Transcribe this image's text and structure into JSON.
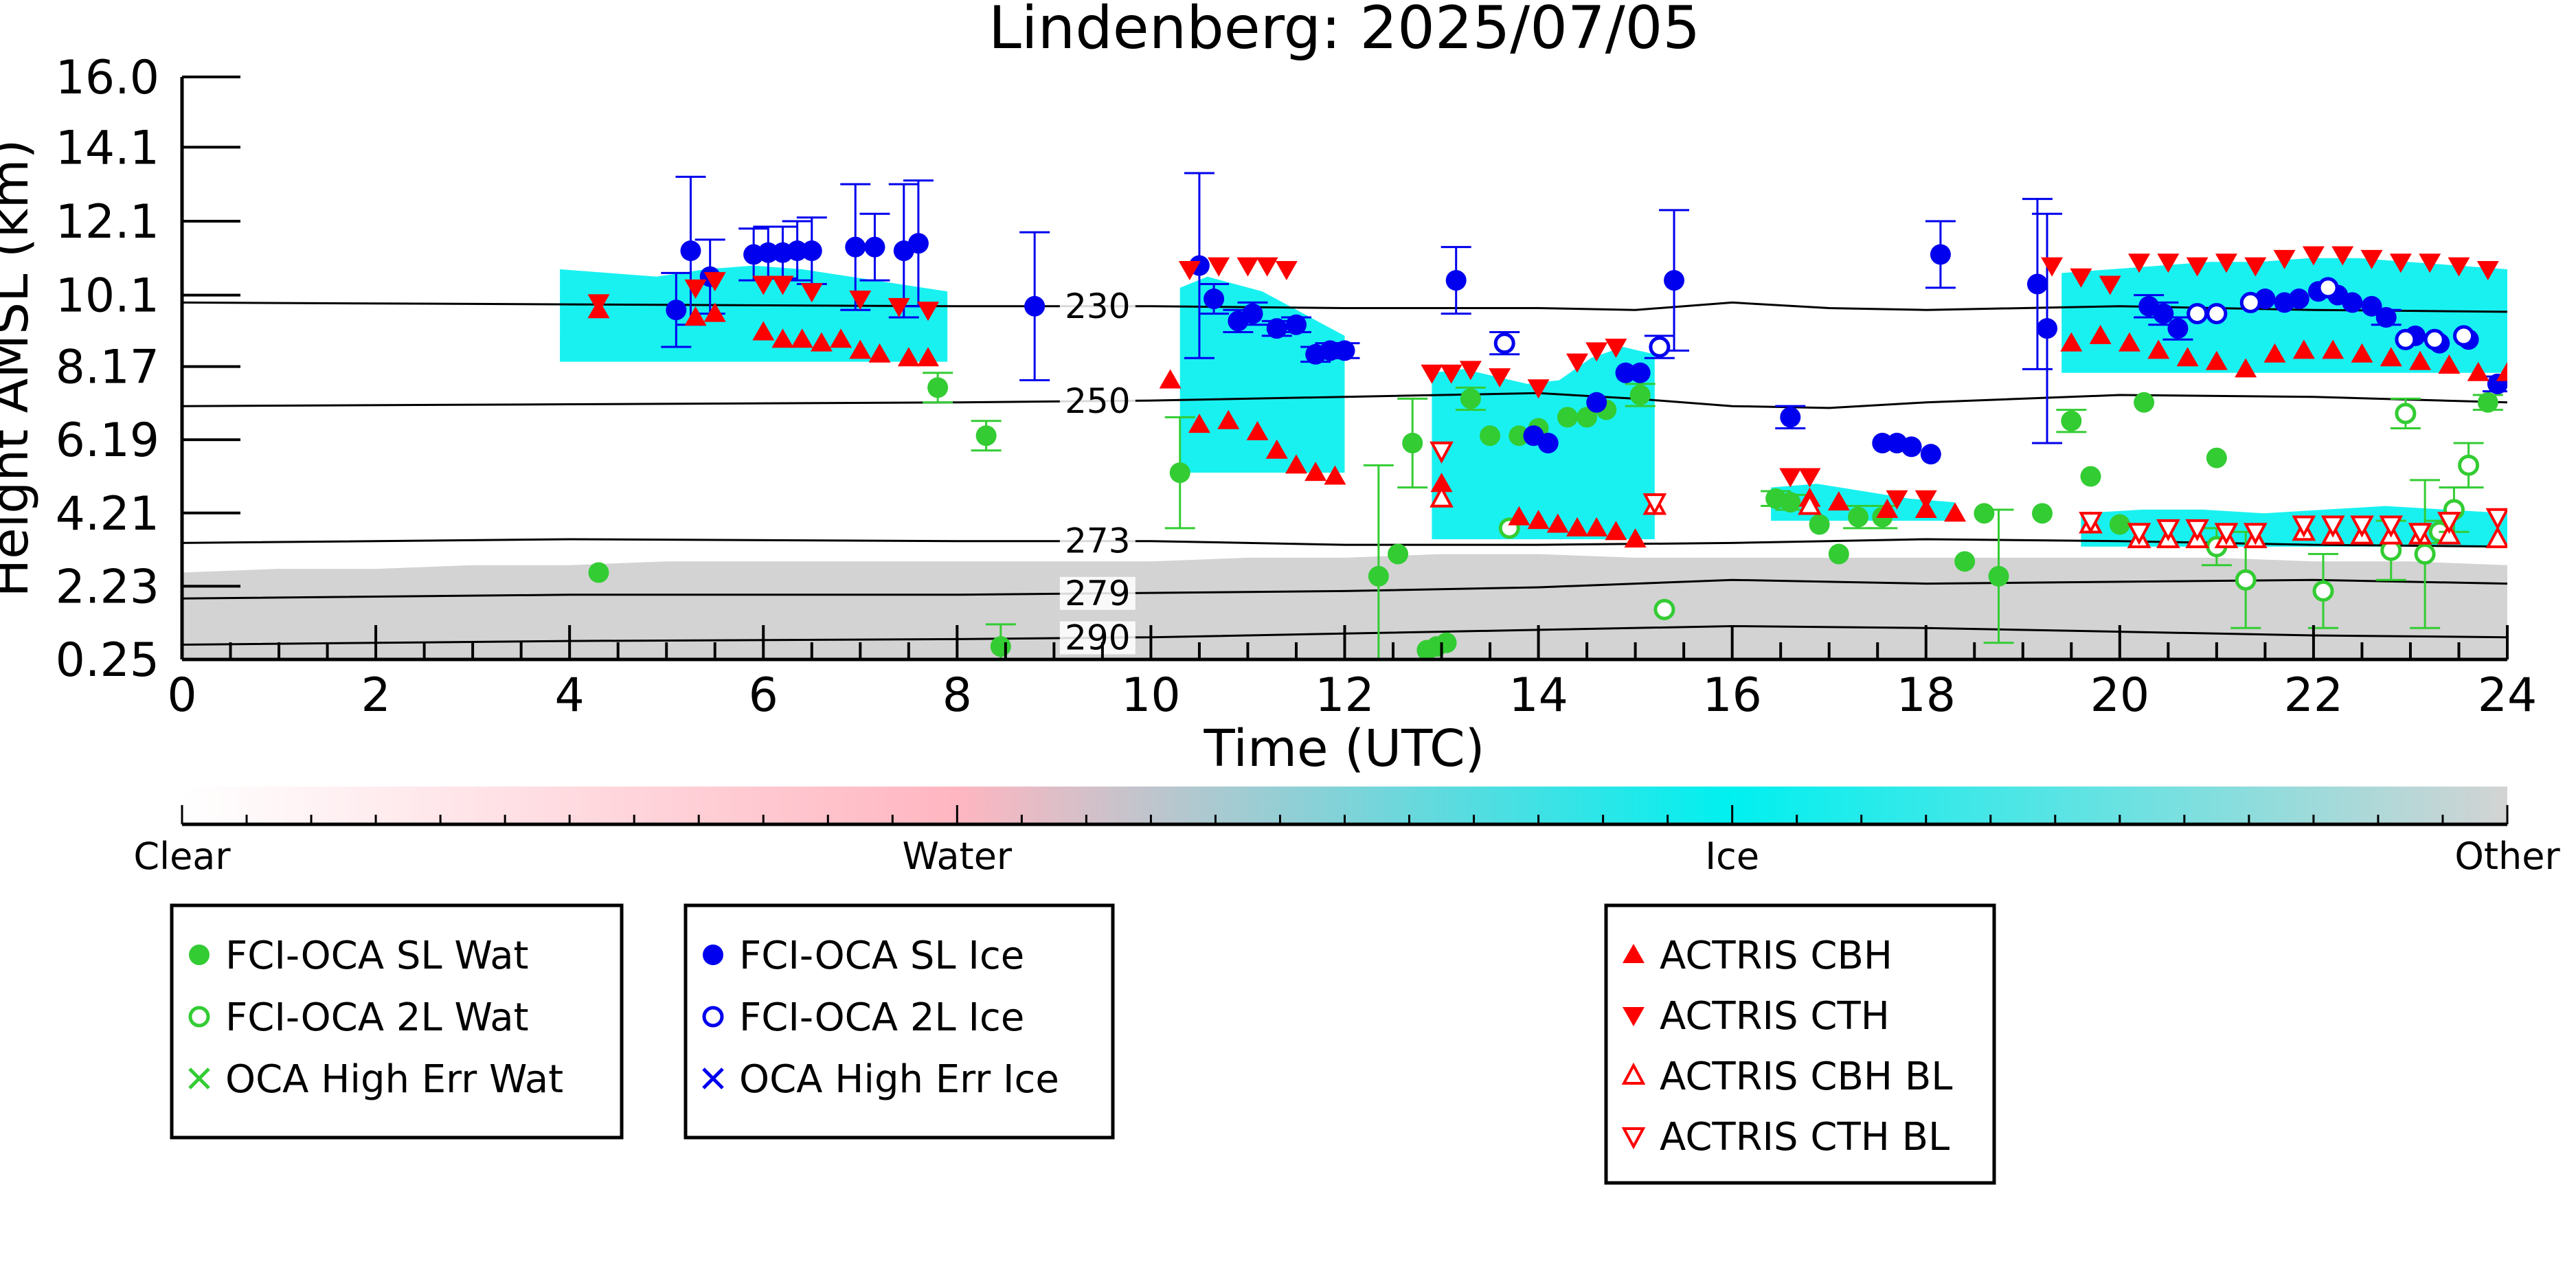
{
  "chart_data": {
    "type": "scatter",
    "title": "Lindenberg: 2025/07/05",
    "xlabel": "Time (UTC)",
    "ylabel": "Height AMSL (km)",
    "xlim": [
      0,
      24
    ],
    "ylim": [
      0.25,
      16.0
    ],
    "xticks": [
      "0",
      "2",
      "4",
      "6",
      "8",
      "10",
      "12",
      "14",
      "16",
      "18",
      "20",
      "22",
      "24"
    ],
    "yticks": [
      "0.25",
      "2.23",
      "4.21",
      "6.19",
      "8.17",
      "10.1",
      "12.1",
      "14.1",
      "16.0"
    ],
    "ytick_values": [
      0.25,
      2.23,
      4.21,
      6.19,
      8.17,
      10.1,
      12.1,
      14.1,
      16.0
    ],
    "grid": false,
    "colorbar": {
      "labels": [
        "Clear",
        "Water",
        "Ice",
        "Other"
      ],
      "colors": [
        "#ffffff",
        "#ffb6c1",
        "#00f0f0",
        "#d3d3d3"
      ]
    },
    "isotherms": [
      {
        "label": "230",
        "x": [
          0,
          4,
          8,
          10,
          12,
          14,
          15,
          16,
          17,
          18,
          20,
          22,
          24
        ],
        "y": [
          9.9,
          9.85,
          9.8,
          9.8,
          9.75,
          9.75,
          9.7,
          9.9,
          9.75,
          9.7,
          9.8,
          9.7,
          9.65
        ]
      },
      {
        "label": "250",
        "x": [
          0,
          4,
          8,
          10,
          12,
          14,
          15,
          16,
          17,
          18,
          20,
          22,
          24
        ],
        "y": [
          7.1,
          7.15,
          7.2,
          7.25,
          7.35,
          7.45,
          7.3,
          7.1,
          7.05,
          7.2,
          7.4,
          7.35,
          7.2
        ]
      },
      {
        "label": "273",
        "x": [
          0,
          4,
          8,
          10,
          12,
          14,
          16,
          18,
          20,
          22,
          24
        ],
        "y": [
          3.4,
          3.5,
          3.45,
          3.45,
          3.35,
          3.35,
          3.4,
          3.5,
          3.45,
          3.35,
          3.3
        ]
      },
      {
        "label": "279",
        "x": [
          0,
          4,
          8,
          10,
          12,
          14,
          16,
          18,
          20,
          22,
          24
        ],
        "y": [
          1.9,
          2.0,
          2.0,
          2.05,
          2.1,
          2.2,
          2.4,
          2.3,
          2.35,
          2.4,
          2.3
        ]
      },
      {
        "label": "290",
        "x": [
          0,
          4,
          8,
          10,
          12,
          14,
          16,
          18,
          20,
          22,
          24
        ],
        "y": [
          0.65,
          0.75,
          0.8,
          0.85,
          0.95,
          1.05,
          1.15,
          1.1,
          1.0,
          0.9,
          0.85
        ]
      }
    ],
    "series": [
      {
        "name": "FCI-OCA SL Wat",
        "color": "#33cc33",
        "marker": "filled-circle",
        "x": [
          4.3,
          7.8,
          8.3,
          8.45,
          10.3,
          12.35,
          12.55,
          12.7,
          12.85,
          12.95,
          13.05,
          13.3,
          13.5,
          13.8,
          14.0,
          14.3,
          14.5,
          14.7,
          15.05,
          16.45,
          16.6,
          16.9,
          17.1,
          17.3,
          17.55,
          18.4,
          18.6,
          18.75,
          19.2,
          19.5,
          19.7,
          20.0,
          20.25,
          21.0,
          23.8
        ],
        "y": [
          2.6,
          7.6,
          6.3,
          0.6,
          5.3,
          2.5,
          3.1,
          6.1,
          0.5,
          0.6,
          0.7,
          7.3,
          6.3,
          6.3,
          6.5,
          6.8,
          6.8,
          7.0,
          7.4,
          4.6,
          4.5,
          3.9,
          3.1,
          4.1,
          4.1,
          2.9,
          4.2,
          2.5,
          4.2,
          6.7,
          5.2,
          3.9,
          7.2,
          5.7,
          7.2
        ],
        "yerr": [
          0.1,
          0.4,
          0.4,
          0.6,
          1.5,
          3.0,
          0.1,
          1.2,
          0.1,
          0.1,
          0.1,
          0.3,
          0.1,
          0.1,
          0.1,
          0.1,
          0.1,
          0.1,
          0.3,
          0.2,
          0.2,
          0.1,
          0.1,
          0.3,
          0.3,
          0.1,
          0.1,
          1.8,
          0.1,
          0.3,
          0.1,
          0.1,
          0.1,
          0.1,
          0.2
        ]
      },
      {
        "name": "FCI-OCA 2L Wat",
        "color": "#33cc33",
        "marker": "open-circle",
        "x": [
          13.7,
          15.3,
          21.0,
          21.3,
          22.1,
          22.8,
          22.95,
          23.15,
          23.3,
          23.45,
          23.6
        ],
        "y": [
          3.8,
          1.6,
          3.3,
          2.4,
          2.1,
          3.2,
          6.9,
          3.1,
          3.7,
          4.3,
          5.5
        ],
        "yerr": [
          0.1,
          0.1,
          0.5,
          1.3,
          1.0,
          0.8,
          0.4,
          2.0,
          0.3,
          0.6,
          0.6
        ]
      },
      {
        "name": "OCA High Err Wat",
        "color": "#33cc33",
        "marker": "x",
        "x": [],
        "y": []
      },
      {
        "name": "FCI-OCA SL Ice",
        "color": "#0000ee",
        "marker": "filled-circle",
        "x": [
          5.1,
          5.25,
          5.45,
          5.9,
          6.05,
          6.2,
          6.35,
          6.5,
          6.95,
          7.15,
          7.45,
          7.6,
          8.8,
          10.5,
          10.65,
          10.9,
          11.05,
          11.3,
          11.5,
          11.7,
          11.85,
          12.0,
          13.15,
          13.95,
          14.1,
          14.6,
          14.9,
          15.05,
          15.4,
          16.6,
          17.55,
          17.7,
          17.85,
          18.05,
          18.15,
          19.15,
          19.25,
          20.3,
          20.45,
          20.6,
          21.5,
          21.7,
          21.85,
          22.05,
          22.25,
          22.4,
          22.6,
          22.75,
          23.05,
          23.3,
          23.6,
          23.9
        ],
        "y": [
          9.7,
          11.3,
          10.6,
          11.2,
          11.25,
          11.25,
          11.3,
          11.3,
          11.4,
          11.4,
          11.3,
          11.5,
          9.8,
          10.9,
          10.0,
          9.4,
          9.6,
          9.2,
          9.3,
          8.5,
          8.6,
          8.6,
          10.5,
          6.3,
          6.1,
          7.2,
          8.0,
          8.0,
          10.5,
          6.8,
          6.1,
          6.1,
          6.0,
          5.8,
          11.2,
          10.4,
          9.2,
          9.8,
          9.6,
          9.2,
          10.0,
          9.9,
          10.0,
          10.2,
          10.1,
          9.9,
          9.8,
          9.5,
          9.0,
          8.8,
          8.9,
          7.7
        ],
        "yerr": [
          1.0,
          2.0,
          1.0,
          0.7,
          0.7,
          0.7,
          0.8,
          0.9,
          1.7,
          0.9,
          1.8,
          1.7,
          2.0,
          2.5,
          0.4,
          0.3,
          0.3,
          0.2,
          0.2,
          0.2,
          0.2,
          0.2,
          0.9,
          0.1,
          0.1,
          0.1,
          0.1,
          0.1,
          1.9,
          0.3,
          0.1,
          0.1,
          0.1,
          0.1,
          0.9,
          2.3,
          3.1,
          0.3,
          0.3,
          0.3,
          0.1,
          0.1,
          0.1,
          0.1,
          0.1,
          0.1,
          0.1,
          0.2,
          0.1,
          0.1,
          0.1,
          0.2
        ]
      },
      {
        "name": "FCI-OCA 2L Ice",
        "color": "#0000ee",
        "marker": "open-circle",
        "x": [
          13.65,
          15.25,
          20.8,
          21.0,
          21.35,
          22.15,
          22.95,
          23.25,
          23.55
        ],
        "y": [
          8.8,
          8.7,
          9.6,
          9.6,
          9.9,
          10.3,
          8.9,
          8.9,
          9.0
        ],
        "yerr": [
          0.3,
          0.3,
          0.1,
          0.1,
          0.1,
          0.1,
          0.1,
          0.1,
          0.1
        ]
      },
      {
        "name": "OCA High Err Ice",
        "color": "#0000ee",
        "marker": "x",
        "x": [],
        "y": []
      },
      {
        "name": "ACTRIS CBH",
        "color": "#ff0000",
        "marker": "filled-triangle-up",
        "x": [
          4.3,
          5.3,
          5.5,
          6.0,
          6.2,
          6.4,
          6.6,
          6.8,
          7.0,
          7.2,
          7.5,
          7.7,
          10.2,
          10.5,
          10.8,
          11.1,
          11.3,
          11.5,
          11.7,
          11.9,
          13.0,
          13.8,
          14.0,
          14.2,
          14.4,
          14.6,
          14.8,
          15.0,
          16.8,
          17.1,
          17.6,
          18.0,
          18.3,
          19.5,
          19.8,
          20.1,
          20.4,
          20.7,
          21.0,
          21.3,
          21.6,
          21.9,
          22.2,
          22.5,
          22.8,
          23.1,
          23.4,
          23.7,
          24.0
        ],
        "y": [
          9.7,
          9.5,
          9.6,
          9.1,
          8.9,
          8.9,
          8.8,
          8.9,
          8.6,
          8.5,
          8.4,
          8.4,
          7.8,
          6.6,
          6.7,
          6.4,
          5.9,
          5.5,
          5.3,
          5.2,
          5.0,
          4.1,
          4.0,
          3.9,
          3.8,
          3.8,
          3.7,
          3.5,
          4.6,
          4.5,
          4.3,
          4.3,
          4.2,
          8.8,
          9.0,
          8.8,
          8.6,
          8.4,
          8.3,
          8.1,
          8.5,
          8.6,
          8.6,
          8.5,
          8.4,
          8.3,
          8.2,
          8.0,
          8.0
        ]
      },
      {
        "name": "ACTRIS CTH",
        "color": "#ff0000",
        "marker": "filled-triangle-down",
        "x": [
          4.3,
          5.3,
          5.5,
          6.0,
          6.2,
          6.5,
          7.0,
          7.4,
          7.7,
          10.4,
          10.7,
          11.0,
          11.2,
          11.4,
          12.9,
          13.1,
          13.3,
          13.6,
          14.0,
          14.4,
          14.6,
          14.8,
          16.6,
          16.8,
          17.7,
          18.0,
          19.3,
          19.6,
          19.9,
          20.2,
          20.5,
          20.8,
          21.1,
          21.4,
          21.7,
          22.0,
          22.3,
          22.6,
          22.9,
          23.2,
          23.5,
          23.8
        ],
        "y": [
          9.9,
          10.3,
          10.5,
          10.4,
          10.4,
          10.2,
          10.0,
          9.8,
          9.7,
          10.8,
          10.9,
          10.9,
          10.9,
          10.8,
          8.0,
          8.0,
          8.1,
          7.9,
          7.6,
          8.3,
          8.6,
          8.7,
          5.2,
          5.2,
          4.6,
          4.6,
          10.9,
          10.6,
          10.4,
          11.0,
          11.0,
          10.9,
          11.0,
          10.9,
          11.1,
          11.2,
          11.2,
          11.1,
          11.0,
          11.0,
          10.9,
          10.8
        ]
      },
      {
        "name": "ACTRIS CBH BL",
        "color": "#ff0000",
        "marker": "open-triangle-up",
        "x": [
          13.0,
          15.2,
          16.8,
          19.7,
          20.2,
          20.5,
          20.8,
          21.1,
          21.4,
          21.9,
          22.2,
          22.5,
          22.8,
          23.1,
          23.4,
          23.9
        ],
        "y": [
          4.6,
          4.4,
          4.4,
          3.9,
          3.5,
          3.5,
          3.5,
          3.5,
          3.5,
          3.7,
          3.6,
          3.6,
          3.6,
          3.6,
          3.6,
          3.5
        ]
      },
      {
        "name": "ACTRIS CTH BL",
        "color": "#ff0000",
        "marker": "open-triangle-down",
        "x": [
          13.0,
          15.2,
          19.7,
          20.2,
          20.5,
          20.8,
          21.1,
          21.4,
          21.9,
          22.2,
          22.5,
          22.8,
          23.1,
          23.4,
          23.9
        ],
        "y": [
          5.9,
          4.5,
          4.0,
          3.7,
          3.8,
          3.8,
          3.7,
          3.7,
          3.9,
          3.9,
          3.9,
          3.9,
          3.7,
          4.0,
          4.1
        ]
      }
    ],
    "legend_groups": [
      [
        "FCI-OCA SL Wat",
        "FCI-OCA 2L Wat",
        "OCA High Err Wat"
      ],
      [
        "FCI-OCA SL Ice",
        "FCI-OCA 2L Ice",
        "OCA High Err Ice"
      ],
      [
        "ACTRIS CBH",
        "ACTRIS CTH",
        "ACTRIS CBH BL",
        "ACTRIS CTH BL"
      ]
    ],
    "cloud_regions": [
      {
        "type": "Other",
        "x0": 0.0,
        "x1": 24.0,
        "y0": 0.25,
        "ytop": [
          2.6,
          2.7,
          2.7,
          2.8,
          2.8,
          2.9,
          2.9,
          2.9,
          2.9,
          2.9,
          2.9,
          3.0,
          3.0,
          3.1,
          3.1,
          3.0,
          3.0,
          3.0,
          3.0,
          3.0,
          3.0,
          3.0,
          2.9,
          2.9,
          2.8
        ]
      },
      {
        "type": "Ice",
        "x0": 3.9,
        "x1": 7.9,
        "y0": 8.3,
        "ytop": [
          10.8,
          10.7,
          10.6,
          10.8,
          10.9,
          10.8,
          10.6,
          10.4,
          10.2
        ]
      },
      {
        "type": "Ice",
        "x0": 10.3,
        "x1": 12.0,
        "y0": 5.3,
        "ytop": [
          10.3,
          10.6,
          10.4,
          10.2,
          9.8,
          9.4,
          9.0
        ]
      },
      {
        "type": "Ice",
        "x0": 12.9,
        "x1": 15.2,
        "y0": 3.5,
        "ytop": [
          8.0,
          8.1,
          7.9,
          7.7,
          7.8,
          8.4,
          8.7,
          8.5
        ]
      },
      {
        "type": "Ice",
        "x0": 19.4,
        "x1": 24.0,
        "y0": 8.0,
        "ytop": [
          10.7,
          10.8,
          10.9,
          11.0,
          11.0,
          11.1,
          11.1,
          11.0,
          10.9,
          10.8
        ]
      },
      {
        "type": "Ice",
        "x0": 16.4,
        "x1": 18.3,
        "y0": 4.0,
        "ytop": [
          4.9,
          5.0,
          4.8,
          4.6,
          4.5
        ]
      },
      {
        "type": "Ice",
        "x0": 19.6,
        "x1": 24.0,
        "y0": 3.3,
        "ytop": [
          4.2,
          4.3,
          4.3,
          4.2,
          4.3,
          4.4,
          4.3,
          4.2
        ]
      }
    ]
  }
}
